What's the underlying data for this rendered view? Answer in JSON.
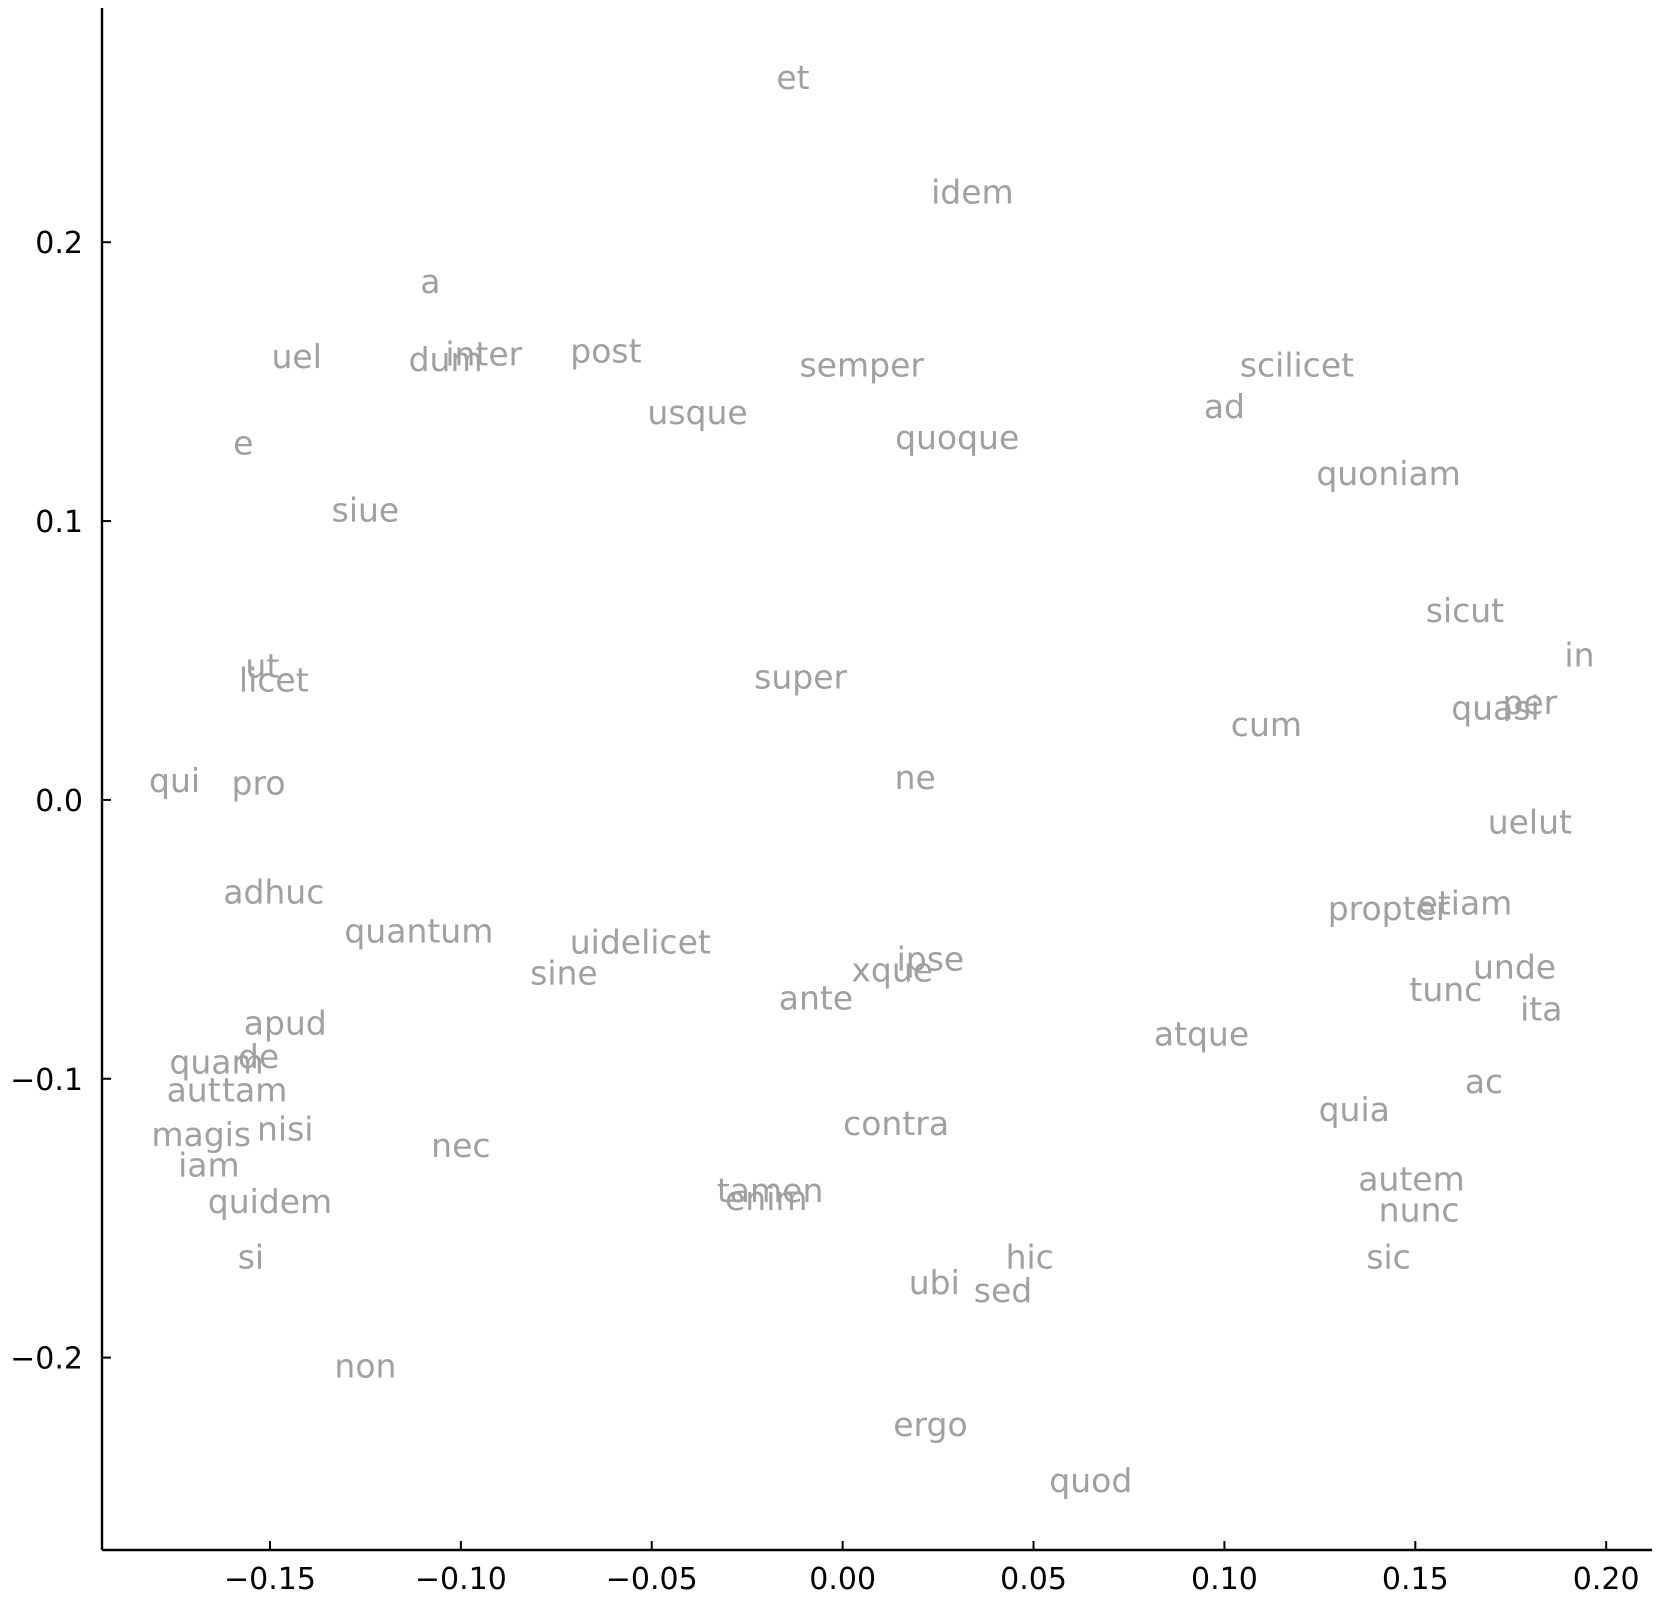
{
  "chart_data": {
    "type": "scatter",
    "title": "",
    "xlabel": "",
    "ylabel": "",
    "xlim": [
      -0.194,
      0.212
    ],
    "ylim": [
      -0.269,
      0.284
    ],
    "grid": false,
    "point_color": "#a0a0a0",
    "x_ticks": [
      {
        "value": -0.15,
        "label": "−0.15"
      },
      {
        "value": -0.1,
        "label": "−0.10"
      },
      {
        "value": -0.05,
        "label": "−0.05"
      },
      {
        "value": 0.0,
        "label": "0.00"
      },
      {
        "value": 0.05,
        "label": "0.05"
      },
      {
        "value": 0.1,
        "label": "0.10"
      },
      {
        "value": 0.15,
        "label": "0.15"
      },
      {
        "value": 0.2,
        "label": "0.20"
      }
    ],
    "y_ticks": [
      {
        "value": 0.2,
        "label": "0.2"
      },
      {
        "value": 0.1,
        "label": "0.1"
      },
      {
        "value": 0.0,
        "label": "0.0"
      },
      {
        "value": -0.1,
        "label": "−0.1"
      },
      {
        "value": -0.2,
        "label": "−0.2"
      }
    ],
    "points": [
      {
        "label": "et",
        "x": -0.013,
        "y": 0.259
      },
      {
        "label": "idem",
        "x": 0.034,
        "y": 0.218
      },
      {
        "label": "a",
        "x": -0.108,
        "y": 0.186
      },
      {
        "label": "uel",
        "x": -0.143,
        "y": 0.159
      },
      {
        "label": "dum",
        "x": -0.104,
        "y": 0.158
      },
      {
        "label": "inter",
        "x": -0.094,
        "y": 0.16
      },
      {
        "label": "post",
        "x": -0.062,
        "y": 0.161
      },
      {
        "label": "semper",
        "x": 0.005,
        "y": 0.156
      },
      {
        "label": "scilicet",
        "x": 0.119,
        "y": 0.156
      },
      {
        "label": "ad",
        "x": 0.1,
        "y": 0.141
      },
      {
        "label": "usque",
        "x": -0.038,
        "y": 0.139
      },
      {
        "label": "quoque",
        "x": 0.03,
        "y": 0.13
      },
      {
        "label": "e",
        "x": -0.157,
        "y": 0.128
      },
      {
        "label": "quoniam",
        "x": 0.143,
        "y": 0.117
      },
      {
        "label": "siue",
        "x": -0.125,
        "y": 0.104
      },
      {
        "label": "sicut",
        "x": 0.163,
        "y": 0.068
      },
      {
        "label": "in",
        "x": 0.193,
        "y": 0.052
      },
      {
        "label": "ut",
        "x": -0.152,
        "y": 0.048
      },
      {
        "label": "licet",
        "x": -0.149,
        "y": 0.043
      },
      {
        "label": "super",
        "x": -0.011,
        "y": 0.044
      },
      {
        "label": "per",
        "x": 0.18,
        "y": 0.035
      },
      {
        "label": "quasi",
        "x": 0.171,
        "y": 0.033
      },
      {
        "label": "cum",
        "x": 0.111,
        "y": 0.027
      },
      {
        "label": "qui",
        "x": -0.175,
        "y": 0.007
      },
      {
        "label": "pro",
        "x": -0.153,
        "y": 0.006
      },
      {
        "label": "ne",
        "x": 0.019,
        "y": 0.008
      },
      {
        "label": "uelut",
        "x": 0.18,
        "y": -0.008
      },
      {
        "label": "adhuc",
        "x": -0.149,
        "y": -0.033
      },
      {
        "label": "propter",
        "x": 0.143,
        "y": -0.039
      },
      {
        "label": "etiam",
        "x": 0.163,
        "y": -0.037
      },
      {
        "label": "quantum",
        "x": -0.111,
        "y": -0.047
      },
      {
        "label": "uidelicet",
        "x": -0.053,
        "y": -0.051
      },
      {
        "label": "sine",
        "x": -0.073,
        "y": -0.062
      },
      {
        "label": "ipse",
        "x": 0.023,
        "y": -0.057
      },
      {
        "label": "xque",
        "x": 0.013,
        "y": -0.061
      },
      {
        "label": "unde",
        "x": 0.176,
        "y": -0.06
      },
      {
        "label": "ante",
        "x": -0.007,
        "y": -0.071
      },
      {
        "label": "tunc",
        "x": 0.158,
        "y": -0.068
      },
      {
        "label": "ita",
        "x": 0.183,
        "y": -0.075
      },
      {
        "label": "apud",
        "x": -0.146,
        "y": -0.08
      },
      {
        "label": "atque",
        "x": 0.094,
        "y": -0.084
      },
      {
        "label": "quam",
        "x": -0.164,
        "y": -0.094
      },
      {
        "label": "de",
        "x": -0.153,
        "y": -0.092
      },
      {
        "label": "aut",
        "x": -0.17,
        "y": -0.104
      },
      {
        "label": "tam",
        "x": -0.154,
        "y": -0.104
      },
      {
        "label": "ac",
        "x": 0.168,
        "y": -0.101
      },
      {
        "label": "quia",
        "x": 0.134,
        "y": -0.111
      },
      {
        "label": "contra",
        "x": 0.014,
        "y": -0.116
      },
      {
        "label": "nisi",
        "x": -0.146,
        "y": -0.118
      },
      {
        "label": "magis",
        "x": -0.168,
        "y": -0.12
      },
      {
        "label": "nec",
        "x": -0.1,
        "y": -0.124
      },
      {
        "label": "iam",
        "x": -0.166,
        "y": -0.131
      },
      {
        "label": "autem",
        "x": 0.149,
        "y": -0.136
      },
      {
        "label": "tamen",
        "x": -0.019,
        "y": -0.14
      },
      {
        "label": "enim",
        "x": -0.02,
        "y": -0.143
      },
      {
        "label": "quidem",
        "x": -0.15,
        "y": -0.144
      },
      {
        "label": "nunc",
        "x": 0.151,
        "y": -0.147
      },
      {
        "label": "hic",
        "x": 0.049,
        "y": -0.164
      },
      {
        "label": "sic",
        "x": 0.143,
        "y": -0.164
      },
      {
        "label": "si",
        "x": -0.155,
        "y": -0.164
      },
      {
        "label": "ubi",
        "x": 0.024,
        "y": -0.173
      },
      {
        "label": "sed",
        "x": 0.042,
        "y": -0.176
      },
      {
        "label": "non",
        "x": -0.125,
        "y": -0.203
      },
      {
        "label": "ergo",
        "x": 0.023,
        "y": -0.224
      },
      {
        "label": "quod",
        "x": 0.065,
        "y": -0.244
      }
    ]
  }
}
